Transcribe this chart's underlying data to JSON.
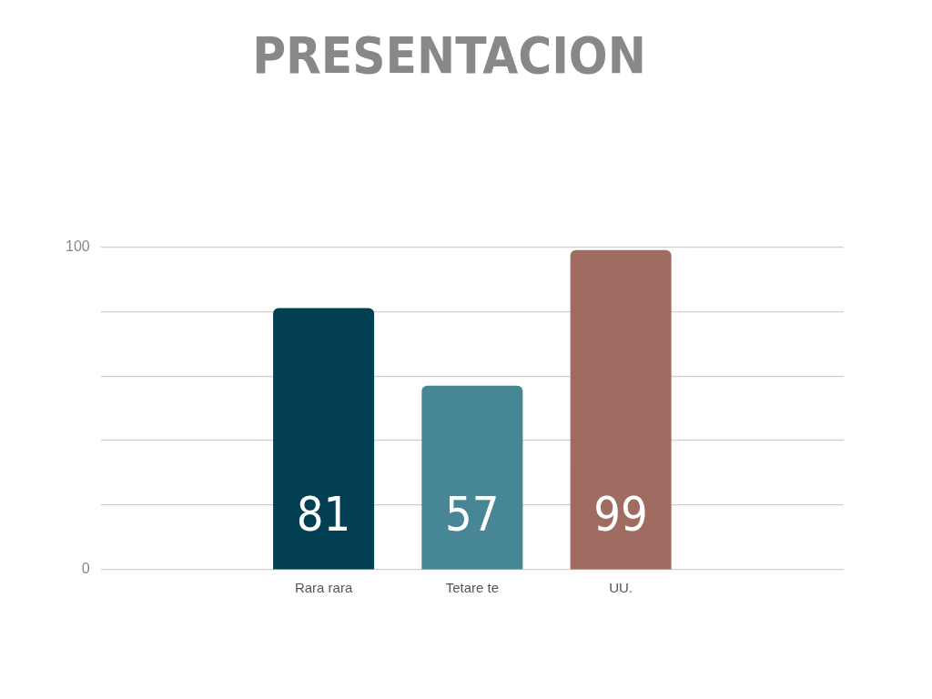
{
  "chart_data": {
    "type": "bar",
    "title": "PRESENTACION",
    "categories": [
      null,
      "Rara rara",
      "Tetare te",
      "UU.",
      null
    ],
    "values": [
      null,
      81,
      57,
      99,
      null
    ],
    "colors": [
      "#023f53",
      "#023f53",
      "#478695",
      "#a06b60",
      "#a06b60"
    ],
    "ylim": [
      0,
      100
    ],
    "yticks": [
      0,
      {
        "value": 20,
        "label": null
      },
      {
        "value": 40,
        "label": null
      },
      {
        "value": 60,
        "label": null
      },
      {
        "value": 80,
        "label": null
      },
      100
    ],
    "grid": "y",
    "legend": false,
    "data_labels": true
  }
}
